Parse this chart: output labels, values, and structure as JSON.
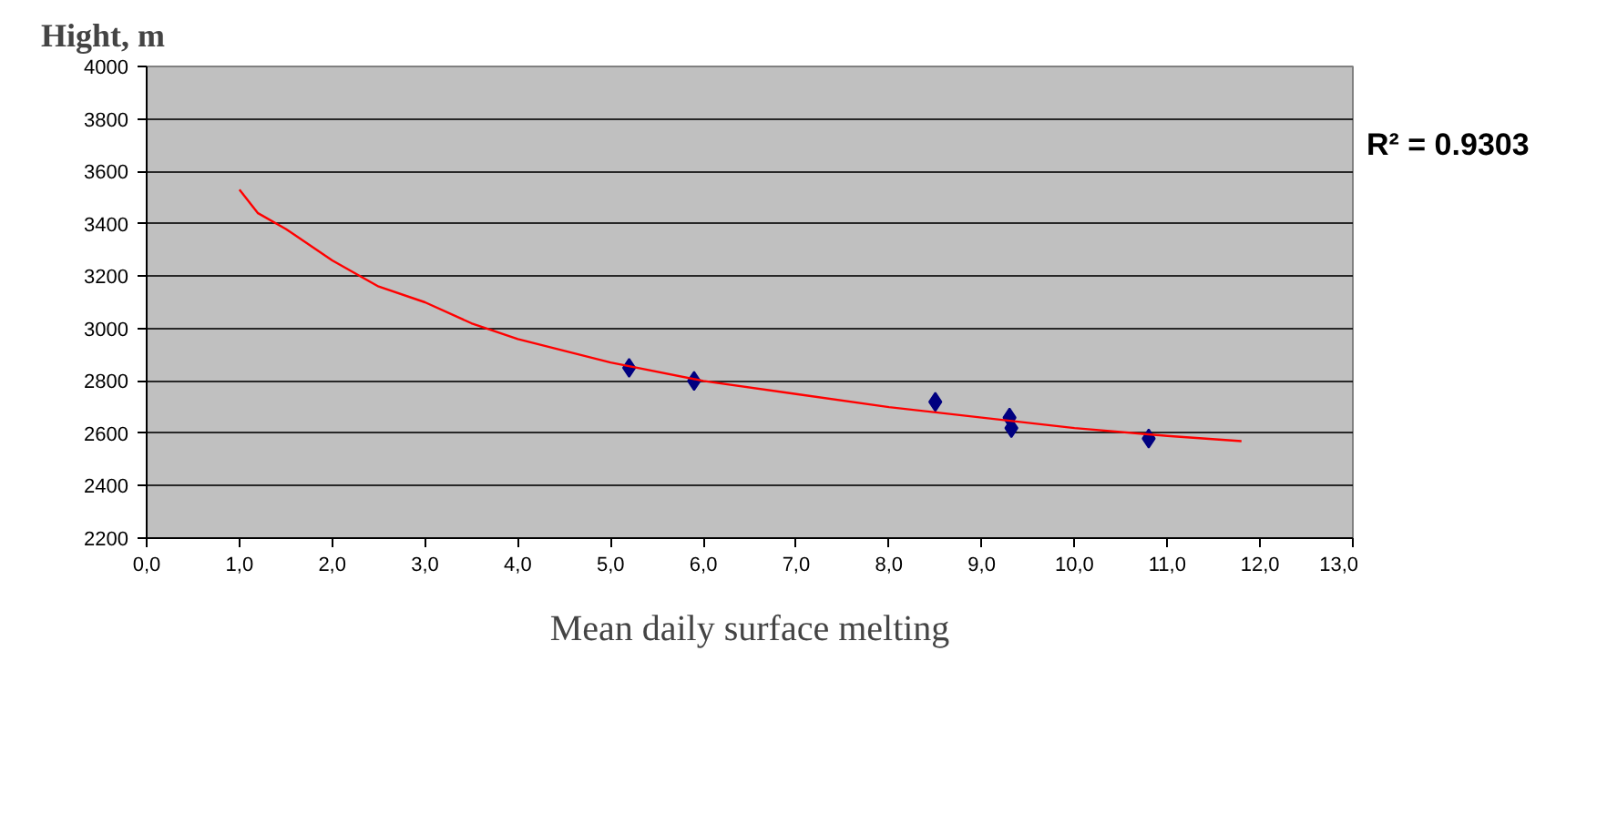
{
  "chart_data": {
    "type": "scatter",
    "ylabel": "Hight, m",
    "xlabel": "Mean daily surface melting",
    "annotations": [
      "R² = 0.9303"
    ],
    "xlim": [
      0,
      13
    ],
    "ylim": [
      2200,
      4000
    ],
    "xticks": [
      {
        "value": 0,
        "label": "0,0"
      },
      {
        "value": 1,
        "label": "1,0"
      },
      {
        "value": 2,
        "label": "2,0"
      },
      {
        "value": 3,
        "label": "3,0"
      },
      {
        "value": 4,
        "label": "4,0"
      },
      {
        "value": 5,
        "label": "5,0"
      },
      {
        "value": 6,
        "label": "6,0"
      },
      {
        "value": 7,
        "label": "7,0"
      },
      {
        "value": 8,
        "label": "8,0"
      },
      {
        "value": 9,
        "label": "9,0"
      },
      {
        "value": 10,
        "label": "10,0"
      },
      {
        "value": 11,
        "label": "11,0"
      },
      {
        "value": 12,
        "label": "12,0"
      },
      {
        "value": 13,
        "label": "13,0"
      }
    ],
    "yticks": [
      2200,
      2400,
      2600,
      2800,
      3000,
      3200,
      3400,
      3600,
      3800,
      4000
    ],
    "grid": "y",
    "marker": "diamond",
    "series": [
      {
        "color": "#000080",
        "x": [
          5.2,
          5.9,
          8.5,
          9.3,
          9.32,
          10.8
        ],
        "values": [
          2850,
          2800,
          2720,
          2660,
          2620,
          2580
        ]
      },
      {
        "type": "line",
        "color": "#ff0000",
        "marker": "none",
        "x": [
          1.0,
          1.2,
          1.5,
          2.0,
          2.5,
          3.0,
          3.5,
          4.0,
          5.0,
          6.0,
          7.0,
          8.0,
          9.0,
          10.0,
          11.0,
          11.8
        ],
        "values": [
          3530,
          3440,
          3380,
          3260,
          3160,
          3100,
          3020,
          2960,
          2870,
          2800,
          2750,
          2700,
          2660,
          2620,
          2590,
          2570
        ]
      }
    ]
  }
}
